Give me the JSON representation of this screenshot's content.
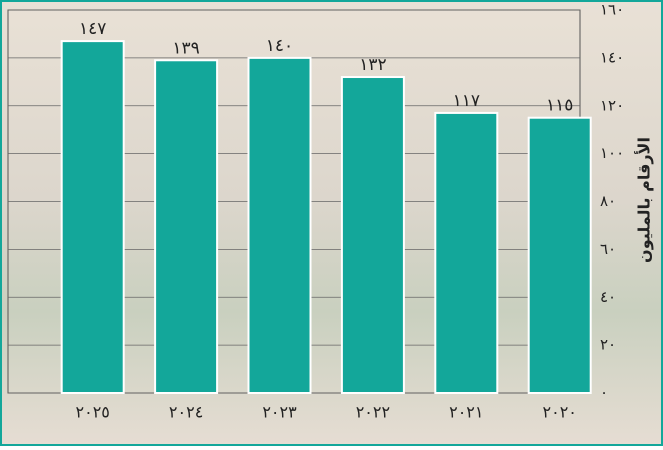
{
  "chart_data": {
    "type": "bar",
    "y_axis_label": "الأرقام بالمليون",
    "categories": [
      "٢٠٢٥",
      "٢٠٢٤",
      "٢٠٢٣",
      "٢٠٢٢",
      "٢٠٢١",
      "٢٠٢٠"
    ],
    "values": [
      147,
      139,
      140,
      132,
      117,
      115
    ],
    "value_labels": [
      "١٤٧",
      "١٣٩",
      "١٤٠",
      "١٣٢",
      "١١٧",
      "١١٥"
    ],
    "color": "#13a79a",
    "ylim": [
      0,
      160
    ],
    "yticks": [
      {
        "value": 0,
        "label": "٠"
      },
      {
        "value": 20,
        "label": "٢٠"
      },
      {
        "value": 40,
        "label": "٤٠"
      },
      {
        "value": 60,
        "label": "٦٠"
      },
      {
        "value": 80,
        "label": "٨٠"
      },
      {
        "value": 100,
        "label": "١٠٠"
      },
      {
        "value": 120,
        "label": "١٢٠"
      },
      {
        "value": 140,
        "label": "١٤٠"
      },
      {
        "value": 160,
        "label": "١٦٠"
      }
    ],
    "grid": true
  }
}
